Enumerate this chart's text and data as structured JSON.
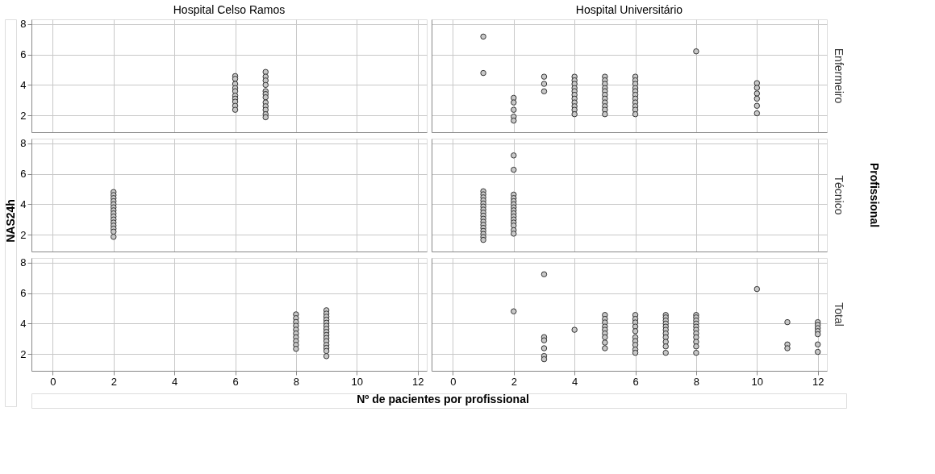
{
  "chart_data": [
    {
      "type": "scatter",
      "title": "Hospital Celso Ramos",
      "xlim": [
        -0.7,
        12.3
      ],
      "ylim": [
        0.9,
        8.3
      ],
      "xticks": [
        0,
        2,
        4,
        6,
        8,
        10,
        12
      ],
      "yticks": [
        2,
        4,
        6,
        8
      ],
      "grid": true,
      "marker": "circle",
      "tick_labels": "y",
      "series": [
        {
          "color": "#c8c8c8",
          "x": [
            6,
            6,
            6,
            6,
            6,
            6,
            6,
            6,
            6,
            6,
            7,
            7,
            7,
            7,
            7,
            7,
            7,
            7,
            7,
            7,
            7,
            7
          ],
          "values": [
            4.58,
            4.4,
            4.07,
            3.8,
            3.59,
            3.3,
            3.1,
            2.9,
            2.63,
            2.37,
            4.85,
            4.54,
            4.29,
            4.0,
            3.59,
            3.4,
            3.19,
            2.85,
            2.6,
            2.37,
            2.08,
            1.88
          ]
        }
      ]
    },
    {
      "type": "scatter",
      "title": "Hospital Universitário",
      "y2label": "Enfermeiro",
      "xlim": [
        -0.7,
        12.3
      ],
      "ylim": [
        0.9,
        8.3
      ],
      "xticks": [
        0,
        2,
        4,
        6,
        8,
        10,
        12
      ],
      "yticks": [
        2,
        4,
        6,
        8
      ],
      "grid": true,
      "marker": "circle",
      "tick_labels": false,
      "series": [
        {
          "color": "#c8c8c8",
          "x": [
            1,
            1,
            2,
            2,
            2,
            2,
            2,
            3,
            3,
            3,
            4,
            4,
            4,
            4,
            4,
            4,
            4,
            4,
            4,
            4,
            4,
            5,
            5,
            5,
            5,
            5,
            5,
            5,
            5,
            5,
            5,
            5,
            6,
            6,
            6,
            6,
            6,
            6,
            6,
            6,
            6,
            6,
            6,
            8,
            10,
            10,
            10,
            10,
            10,
            10
          ],
          "values": [
            7.17,
            4.78,
            3.15,
            2.85,
            2.37,
            1.92,
            1.66,
            4.54,
            4.07,
            3.58,
            4.54,
            4.3,
            4.07,
            3.8,
            3.59,
            3.35,
            3.1,
            2.85,
            2.6,
            2.37,
            2.08,
            4.54,
            4.3,
            4.07,
            3.8,
            3.59,
            3.35,
            3.1,
            2.85,
            2.6,
            2.37,
            2.08,
            4.54,
            4.3,
            4.07,
            3.8,
            3.59,
            3.35,
            3.1,
            2.85,
            2.6,
            2.37,
            2.08,
            6.2,
            4.12,
            3.81,
            3.44,
            3.1,
            2.63,
            2.14
          ]
        }
      ]
    },
    {
      "type": "scatter",
      "ylabel": "NAS24h",
      "xlim": [
        -0.7,
        12.3
      ],
      "ylim": [
        0.9,
        8.3
      ],
      "xticks": [
        0,
        2,
        4,
        6,
        8,
        10,
        12
      ],
      "yticks": [
        2,
        4,
        6,
        8
      ],
      "grid": true,
      "marker": "circle",
      "tick_labels": "y",
      "series": [
        {
          "color": "#c8c8c8",
          "x": [
            2,
            2,
            2,
            2,
            2,
            2,
            2,
            2,
            2,
            2,
            2,
            2,
            2,
            2,
            2
          ],
          "values": [
            4.8,
            4.6,
            4.4,
            4.2,
            4.0,
            3.8,
            3.6,
            3.4,
            3.2,
            3.0,
            2.8,
            2.6,
            2.4,
            2.2,
            1.86
          ]
        }
      ]
    },
    {
      "type": "scatter",
      "y2label": "Técnico",
      "annotations": [
        "Profissional"
      ],
      "xlim": [
        -0.7,
        12.3
      ],
      "ylim": [
        0.9,
        8.3
      ],
      "xticks": [
        0,
        2,
        4,
        6,
        8,
        10,
        12
      ],
      "yticks": [
        2,
        4,
        6,
        8
      ],
      "grid": true,
      "marker": "circle",
      "tick_labels": false,
      "series": [
        {
          "color": "#c8c8c8",
          "x": [
            1,
            1,
            1,
            1,
            1,
            1,
            1,
            1,
            1,
            1,
            1,
            1,
            1,
            1,
            1,
            1,
            1,
            2,
            2,
            2,
            2,
            2,
            2,
            2,
            2,
            2,
            2,
            2,
            2,
            2,
            2,
            2
          ],
          "values": [
            4.85,
            4.65,
            4.45,
            4.25,
            4.05,
            3.85,
            3.65,
            3.45,
            3.25,
            3.05,
            2.85,
            2.65,
            2.45,
            2.25,
            2.05,
            1.85,
            1.66,
            7.2,
            6.26,
            4.63,
            4.4,
            4.2,
            4.0,
            3.8,
            3.6,
            3.4,
            3.2,
            3.0,
            2.8,
            2.6,
            2.3,
            2.07
          ]
        }
      ]
    },
    {
      "type": "scatter",
      "xlabel": "Nº de pacientes por profissional",
      "xlim": [
        -0.7,
        12.3
      ],
      "ylim": [
        0.9,
        8.3
      ],
      "xticks": [
        0,
        2,
        4,
        6,
        8,
        10,
        12
      ],
      "yticks": [
        2,
        4,
        6,
        8
      ],
      "grid": true,
      "marker": "circle",
      "series": [
        {
          "color": "#c8c8c8",
          "x": [
            8,
            8,
            8,
            8,
            8,
            8,
            8,
            8,
            8,
            8,
            9,
            9,
            9,
            9,
            9,
            9,
            9,
            9,
            9,
            9,
            9,
            9,
            9,
            9,
            9
          ],
          "values": [
            4.6,
            4.35,
            4.1,
            3.85,
            3.6,
            3.35,
            3.1,
            2.85,
            2.6,
            2.34,
            4.87,
            4.65,
            4.45,
            4.25,
            4.05,
            3.85,
            3.65,
            3.45,
            3.25,
            3.05,
            2.85,
            2.6,
            2.4,
            2.2,
            1.86
          ]
        }
      ]
    },
    {
      "type": "scatter",
      "y2label": "Total",
      "xlim": [
        -0.7,
        12.3
      ],
      "ylim": [
        0.9,
        8.3
      ],
      "xticks": [
        0,
        2,
        4,
        6,
        8,
        10,
        12
      ],
      "yticks": [
        2,
        4,
        6,
        8
      ],
      "grid": true,
      "marker": "circle",
      "tick_labels": "x",
      "series": [
        {
          "color": "#c8c8c8",
          "x": [
            2,
            3,
            3,
            3,
            3,
            3,
            3,
            4,
            5,
            5,
            5,
            5,
            5,
            5,
            5,
            5,
            5,
            6,
            6,
            6,
            6,
            6,
            6,
            6,
            6,
            6,
            6,
            7,
            7,
            7,
            7,
            7,
            7,
            7,
            7,
            7,
            7,
            7,
            8,
            8,
            8,
            8,
            8,
            8,
            8,
            8,
            8,
            8,
            8,
            10,
            11,
            11,
            11,
            12,
            12,
            12,
            12,
            12,
            12,
            12
          ],
          "values": [
            4.8,
            7.23,
            3.11,
            2.9,
            2.38,
            1.87,
            1.66,
            3.59,
            4.56,
            4.3,
            4.07,
            3.8,
            3.59,
            3.35,
            3.1,
            2.75,
            2.38,
            4.56,
            4.3,
            4.07,
            3.8,
            3.5,
            3.1,
            2.85,
            2.6,
            2.3,
            2.08,
            4.56,
            4.4,
            4.2,
            4.0,
            3.8,
            3.59,
            3.35,
            3.1,
            2.8,
            2.5,
            2.08,
            4.56,
            4.4,
            4.2,
            4.0,
            3.8,
            3.59,
            3.35,
            3.1,
            2.8,
            2.5,
            2.08,
            6.26,
            4.09,
            2.63,
            2.38,
            4.09,
            3.9,
            3.7,
            3.5,
            3.3,
            2.63,
            2.14
          ]
        }
      ]
    }
  ]
}
